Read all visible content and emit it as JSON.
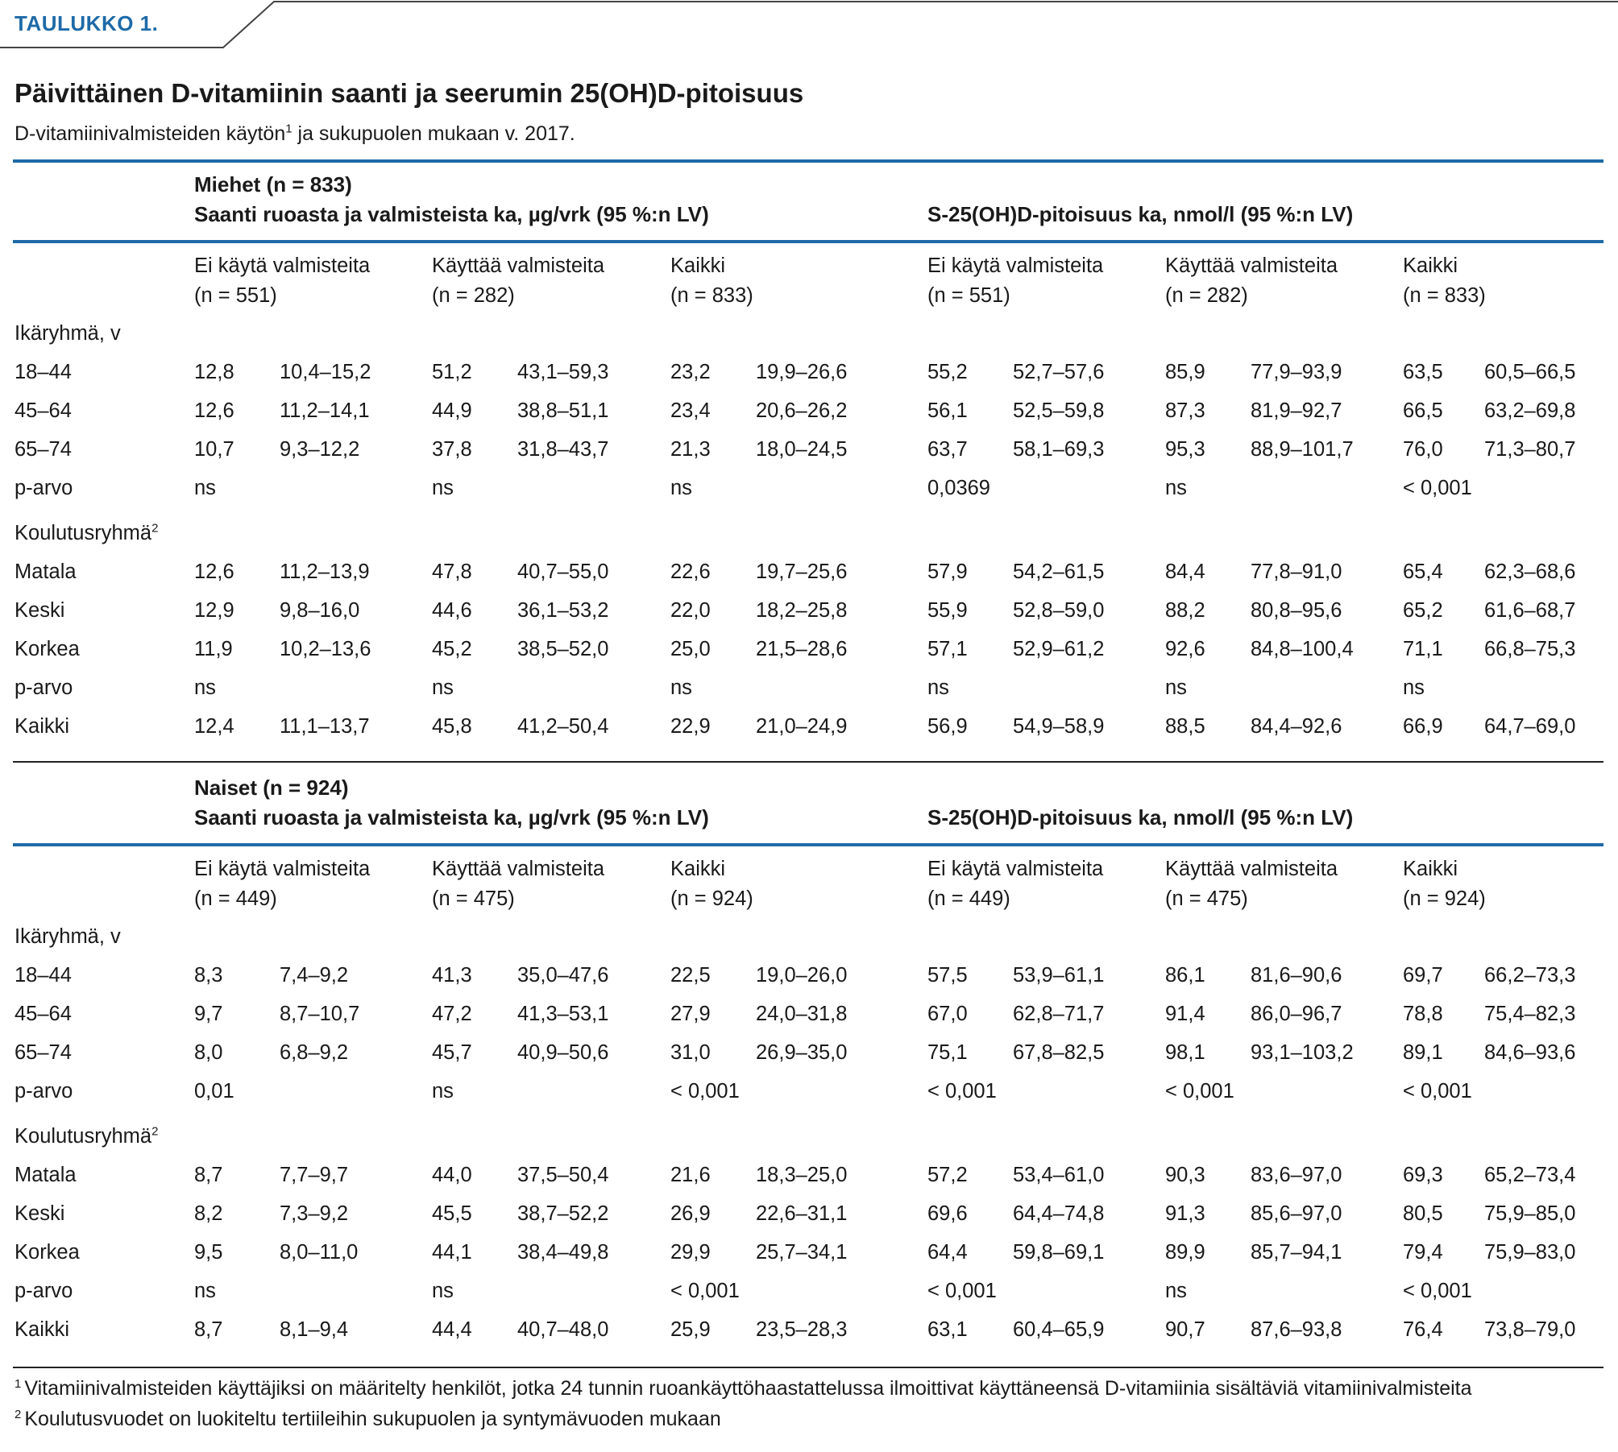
{
  "tab_label": "TAULUKKO 1.",
  "title": "Päivittäinen D-vitamiinin saanti ja seerumin 25(OH)D-pitoisuus",
  "subtitle": {
    "before": "D-vitamiinivalmisteiden käytön",
    "sup": "1",
    "after": " ja sukupuolen mukaan v. 2017."
  },
  "colors": {
    "accent": "#1e6aa8",
    "rule": "#222222"
  },
  "sections": [
    {
      "group_label": "Miehet (n = 833)",
      "intake_header": "Saanti ruoasta ja valmisteista ka, µg/vrk (95 %:n LV)",
      "serum_header": "S-25(OH)D-pitoisuus ka, nmol/l (95 %:n LV)",
      "columns": [
        {
          "label": "Ei käytä valmisteita",
          "n": "(n = 551)"
        },
        {
          "label": "Käyttää valmisteita",
          "n": "(n = 282)"
        },
        {
          "label": "Kaikki",
          "n": "(n = 833)"
        },
        {
          "label": "Ei käytä valmisteita",
          "n": "(n = 551)"
        },
        {
          "label": "Käyttää valmisteita",
          "n": "(n = 282)"
        },
        {
          "label": "Kaikki",
          "n": "(n = 833)"
        }
      ],
      "rows": [
        {
          "label": "Ikäryhmä, v",
          "sup": "",
          "cells": []
        },
        {
          "label": "18–44",
          "sup": "",
          "cells": [
            "12,8",
            "10,4–15,2",
            "51,2",
            "43,1–59,3",
            "23,2",
            "19,9–26,6",
            "55,2",
            "52,7–57,6",
            "85,9",
            "77,9–93,9",
            "63,5",
            "60,5–66,5"
          ]
        },
        {
          "label": "45–64",
          "sup": "",
          "cells": [
            "12,6",
            "11,2–14,1",
            "44,9",
            "38,8–51,1",
            "23,4",
            "20,6–26,2",
            "56,1",
            "52,5–59,8",
            "87,3",
            "81,9–92,7",
            "66,5",
            "63,2–69,8"
          ]
        },
        {
          "label": "65–74",
          "sup": "",
          "cells": [
            "10,7",
            "9,3–12,2",
            "37,8",
            "31,8–43,7",
            "21,3",
            "18,0–24,5",
            "63,7",
            "58,1–69,3",
            "95,3",
            "88,9–101,7",
            "76,0",
            "71,3–80,7"
          ]
        },
        {
          "label": "p-arvo",
          "sup": "",
          "cells": [
            "ns",
            "",
            "ns",
            "",
            "ns",
            "",
            "0,0369",
            "",
            "ns",
            "",
            "< 0,001",
            ""
          ]
        },
        {
          "label": "Koulutusryhmä",
          "sup": "2",
          "cells": []
        },
        {
          "label": "Matala",
          "sup": "",
          "cells": [
            "12,6",
            "11,2–13,9",
            "47,8",
            "40,7–55,0",
            "22,6",
            "19,7–25,6",
            "57,9",
            "54,2–61,5",
            "84,4",
            "77,8–91,0",
            "65,4",
            "62,3–68,6"
          ]
        },
        {
          "label": "Keski",
          "sup": "",
          "cells": [
            "12,9",
            "9,8–16,0",
            "44,6",
            "36,1–53,2",
            "22,0",
            "18,2–25,8",
            "55,9",
            "52,8–59,0",
            "88,2",
            "80,8–95,6",
            "65,2",
            "61,6–68,7"
          ]
        },
        {
          "label": "Korkea",
          "sup": "",
          "cells": [
            "11,9",
            "10,2–13,6",
            "45,2",
            "38,5–52,0",
            "25,0",
            "21,5–28,6",
            "57,1",
            "52,9–61,2",
            "92,6",
            "84,8–100,4",
            "71,1",
            "66,8–75,3"
          ]
        },
        {
          "label": "p-arvo",
          "sup": "",
          "cells": [
            "ns",
            "",
            "ns",
            "",
            "ns",
            "",
            "ns",
            "",
            "ns",
            "",
            "ns",
            ""
          ]
        },
        {
          "label": "Kaikki",
          "sup": "",
          "cells": [
            "12,4",
            "11,1–13,7",
            "45,8",
            "41,2–50,4",
            "22,9",
            "21,0–24,9",
            "56,9",
            "54,9–58,9",
            "88,5",
            "84,4–92,6",
            "66,9",
            "64,7–69,0"
          ]
        }
      ]
    },
    {
      "group_label": "Naiset (n = 924)",
      "intake_header": "Saanti ruoasta ja valmisteista ka, µg/vrk (95 %:n LV)",
      "serum_header": "S-25(OH)D-pitoisuus ka, nmol/l (95 %:n LV)",
      "columns": [
        {
          "label": "Ei käytä valmisteita",
          "n": "(n = 449)"
        },
        {
          "label": "Käyttää valmisteita",
          "n": "(n = 475)"
        },
        {
          "label": "Kaikki",
          "n": "(n = 924)"
        },
        {
          "label": "Ei käytä valmisteita",
          "n": "(n = 449)"
        },
        {
          "label": "Käyttää valmisteita",
          "n": "(n = 475)"
        },
        {
          "label": "Kaikki",
          "n": "(n = 924)"
        }
      ],
      "rows": [
        {
          "label": "Ikäryhmä, v",
          "sup": "",
          "cells": []
        },
        {
          "label": "18–44",
          "sup": "",
          "cells": [
            "8,3",
            "7,4–9,2",
            "41,3",
            "35,0–47,6",
            "22,5",
            "19,0–26,0",
            "57,5",
            "53,9–61,1",
            "86,1",
            "81,6–90,6",
            "69,7",
            "66,2–73,3"
          ]
        },
        {
          "label": "45–64",
          "sup": "",
          "cells": [
            "9,7",
            "8,7–10,7",
            "47,2",
            "41,3–53,1",
            "27,9",
            "24,0–31,8",
            "67,0",
            "62,8–71,7",
            "91,4",
            "86,0–96,7",
            "78,8",
            "75,4–82,3"
          ]
        },
        {
          "label": "65–74",
          "sup": "",
          "cells": [
            "8,0",
            "6,8–9,2",
            "45,7",
            "40,9–50,6",
            "31,0",
            "26,9–35,0",
            "75,1",
            "67,8–82,5",
            "98,1",
            "93,1–103,2",
            "89,1",
            "84,6–93,6"
          ]
        },
        {
          "label": "p-arvo",
          "sup": "",
          "cells": [
            "0,01",
            "",
            "ns",
            "",
            "< 0,001",
            "",
            "< 0,001",
            "",
            "< 0,001",
            "",
            "< 0,001",
            ""
          ]
        },
        {
          "label": "Koulutusryhmä",
          "sup": "2",
          "cells": []
        },
        {
          "label": "Matala",
          "sup": "",
          "cells": [
            "8,7",
            "7,7–9,7",
            "44,0",
            "37,5–50,4",
            "21,6",
            "18,3–25,0",
            "57,2",
            "53,4–61,0",
            "90,3",
            "83,6–97,0",
            "69,3",
            "65,2–73,4"
          ]
        },
        {
          "label": "Keski",
          "sup": "",
          "cells": [
            "8,2",
            "7,3–9,2",
            "45,5",
            "38,7–52,2",
            "26,9",
            "22,6–31,1",
            "69,6",
            "64,4–74,8",
            "91,3",
            "85,6–97,0",
            "80,5",
            "75,9–85,0"
          ]
        },
        {
          "label": "Korkea",
          "sup": "",
          "cells": [
            "9,5",
            "8,0–11,0",
            "44,1",
            "38,4–49,8",
            "29,9",
            "25,7–34,1",
            "64,4",
            "59,8–69,1",
            "89,9",
            "85,7–94,1",
            "79,4",
            "75,9–83,0"
          ]
        },
        {
          "label": "p-arvo",
          "sup": "",
          "cells": [
            "ns",
            "",
            "ns",
            "",
            "< 0,001",
            "",
            "< 0,001",
            "",
            "ns",
            "",
            "< 0,001",
            ""
          ]
        },
        {
          "label": "Kaikki",
          "sup": "",
          "cells": [
            "8,7",
            "8,1–9,4",
            "44,4",
            "40,7–48,0",
            "25,9",
            "23,5–28,3",
            "63,1",
            "60,4–65,9",
            "90,7",
            "87,6–93,8",
            "76,4",
            "73,8–79,0"
          ]
        }
      ]
    }
  ],
  "footnotes": [
    {
      "sup": "1",
      "text": "Vitamiinivalmisteiden käyttäjiksi on määritelty henkilöt, jotka 24 tunnin ruoankäyttöhaastattelussa ilmoittivat käyttäneensä D-vitamiinia sisältäviä vitamiinivalmisteita"
    },
    {
      "sup": "2",
      "text": "Koulutusvuodet on luokiteltu tertiileihin sukupuolen ja syntymävuoden mukaan"
    }
  ]
}
